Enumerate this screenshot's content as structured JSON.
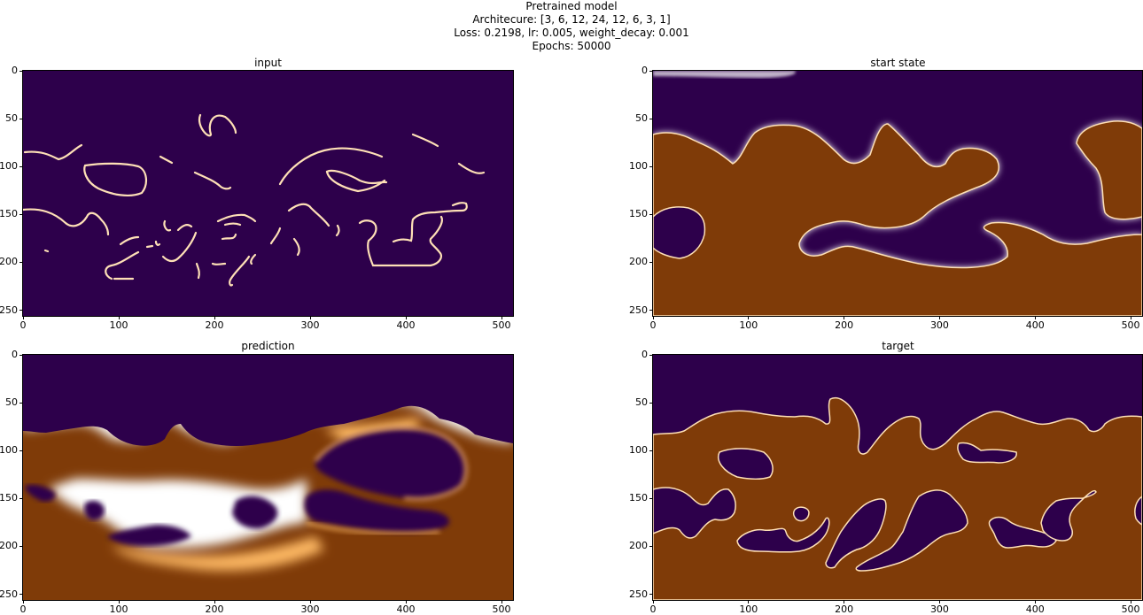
{
  "figure": {
    "title_lines": [
      "Pretrained model",
      "Architecure: [3, 6, 12, 24, 12, 6, 3, 1]",
      "Loss: 0.2198, lr: 0.005, weight_decay: 0.001",
      "Epochs: 50000"
    ]
  },
  "colors": {
    "background": "#2d004b",
    "fill": "#7f3b08",
    "edge": "#fee0b6",
    "mid": "#f7f7f7"
  },
  "chart_data": [
    {
      "type": "heatmap",
      "title": "input",
      "xlim": [
        0,
        512
      ],
      "ylim": [
        256,
        0
      ],
      "xticks": [
        0,
        100,
        200,
        300,
        400,
        500
      ],
      "yticks": [
        0,
        50,
        100,
        150,
        200,
        250
      ],
      "colormap": "PuOr",
      "description_values": "thin light contour lines on dark purple background"
    },
    {
      "type": "heatmap",
      "title": "start state",
      "xlim": [
        0,
        512
      ],
      "ylim": [
        256,
        0
      ],
      "xticks": [
        0,
        100,
        200,
        300,
        400,
        500
      ],
      "yticks": [
        0,
        50,
        100,
        150,
        200,
        250
      ],
      "colormap": "PuOr"
    },
    {
      "type": "heatmap",
      "title": "prediction",
      "xlim": [
        0,
        512
      ],
      "ylim": [
        256,
        0
      ],
      "xticks": [
        0,
        100,
        200,
        300,
        400,
        500
      ],
      "yticks": [
        0,
        50,
        100,
        150,
        200,
        250
      ],
      "colormap": "PuOr"
    },
    {
      "type": "heatmap",
      "title": "target",
      "xlim": [
        0,
        512
      ],
      "ylim": [
        256,
        0
      ],
      "xticks": [
        0,
        100,
        200,
        300,
        400,
        500
      ],
      "yticks": [
        0,
        50,
        100,
        150,
        200,
        250
      ],
      "colormap": "PuOr"
    }
  ]
}
